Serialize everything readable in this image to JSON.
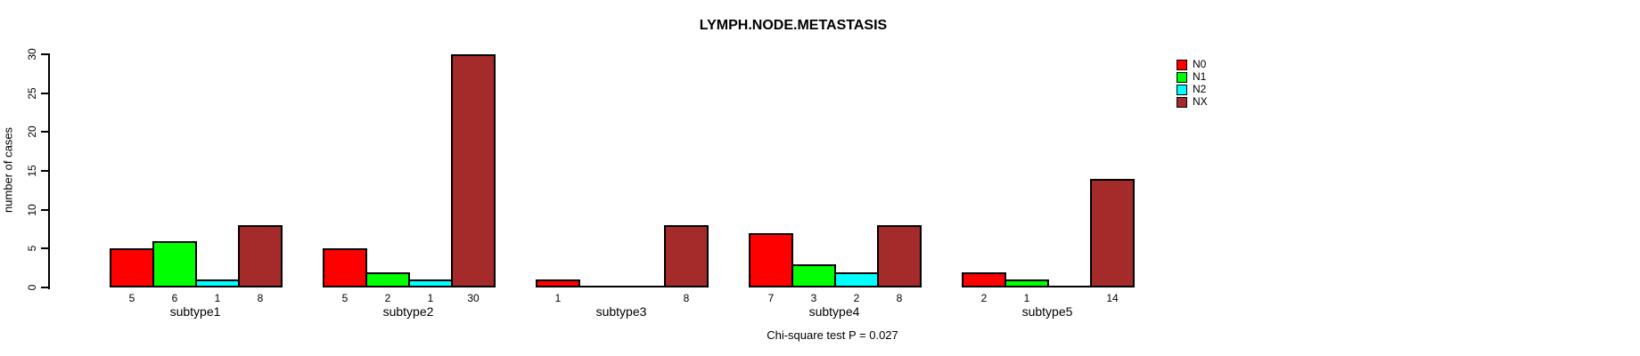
{
  "chart_data": {
    "type": "bar",
    "title": "LYMPH.NODE.METASTASIS",
    "ylabel": "number of cases",
    "xlabel": "",
    "ylim": [
      0,
      30
    ],
    "yticks": [
      0,
      5,
      10,
      15,
      20,
      25,
      30
    ],
    "categories": [
      "subtype1",
      "subtype2",
      "subtype3",
      "subtype4",
      "subtype5"
    ],
    "series": [
      {
        "name": "N0",
        "color": "#ff0000",
        "values": [
          5,
          5,
          1,
          7,
          2
        ]
      },
      {
        "name": "N1",
        "color": "#00ff00",
        "values": [
          6,
          2,
          0,
          3,
          1
        ]
      },
      {
        "name": "N2",
        "color": "#00ffff",
        "values": [
          1,
          1,
          0,
          2,
          0
        ]
      },
      {
        "name": "NX",
        "color": "#a52a2a",
        "values": [
          8,
          30,
          8,
          8,
          14
        ]
      }
    ],
    "bar_value_labels": "shown under each bar, hidden for zero values",
    "zero_bars": "drawn as flat black line at baseline",
    "legend_position": "right",
    "grid": false,
    "annotation": "Chi-square test P = 0.027"
  }
}
